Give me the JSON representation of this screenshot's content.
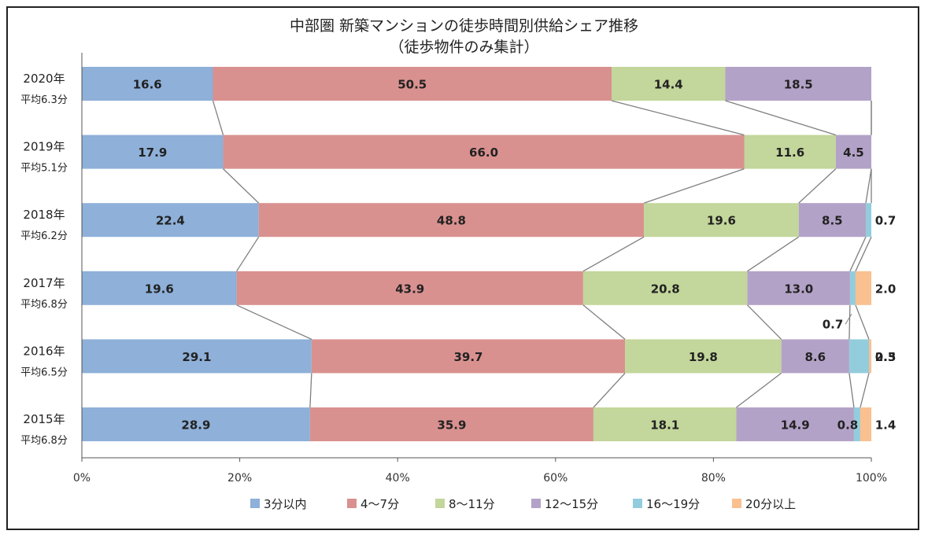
{
  "chart_data": {
    "type": "bar",
    "orientation": "horizontal",
    "stacked": "percent",
    "title": "中部圏 新築マンションの徒歩時間別供給シェア推移",
    "subtitle": "（徒歩物件のみ集計）",
    "categories": [
      "2020年",
      "2019年",
      "2018年",
      "2017年",
      "2016年",
      "2015年"
    ],
    "category_sublabels": [
      "平均6.3分",
      "平均5.1分",
      "平均6.2分",
      "平均6.8分",
      "平均6.5分",
      "平均6.8分"
    ],
    "xlim": [
      0,
      100
    ],
    "xticks": [
      "0%",
      "20%",
      "40%",
      "60%",
      "80%",
      "100%"
    ],
    "legend_position": "bottom",
    "series_connectors": true,
    "series": [
      {
        "name": "3分以内",
        "color": "#8eb0d9",
        "values": [
          16.6,
          17.9,
          22.4,
          19.6,
          29.1,
          28.9
        ]
      },
      {
        "name": "4〜7分",
        "color": "#d9918f",
        "values": [
          50.5,
          66.0,
          48.8,
          43.9,
          39.7,
          35.9
        ]
      },
      {
        "name": "8〜11分",
        "color": "#c3d69b",
        "values": [
          14.4,
          11.6,
          19.6,
          20.8,
          19.8,
          18.1
        ]
      },
      {
        "name": "12〜15分",
        "color": "#b3a2c7",
        "values": [
          18.5,
          4.5,
          8.5,
          13.0,
          8.6,
          14.9
        ]
      },
      {
        "name": "16〜19分",
        "color": "#93cddd",
        "values": [
          0,
          0,
          0.7,
          0.7,
          2.5,
          0.8
        ]
      },
      {
        "name": "20分以上",
        "color": "#fac090",
        "values": [
          0,
          0,
          0,
          2.0,
          0.3,
          1.4
        ]
      }
    ],
    "data_labels": [
      [
        "16.6",
        "50.5",
        "14.4",
        "18.5",
        "",
        ""
      ],
      [
        "17.9",
        "66.0",
        "11.6",
        "4.5",
        "",
        ""
      ],
      [
        "22.4",
        "48.8",
        "19.6",
        "8.5",
        "0.7",
        ""
      ],
      [
        "19.6",
        "43.9",
        "20.8",
        "13.0",
        "0.7",
        "2.0"
      ],
      [
        "29.1",
        "39.7",
        "19.8",
        "8.6",
        "2.5",
        "0.3"
      ],
      [
        "28.9",
        "35.9",
        "18.1",
        "14.9",
        "0.8",
        "1.4"
      ]
    ]
  }
}
